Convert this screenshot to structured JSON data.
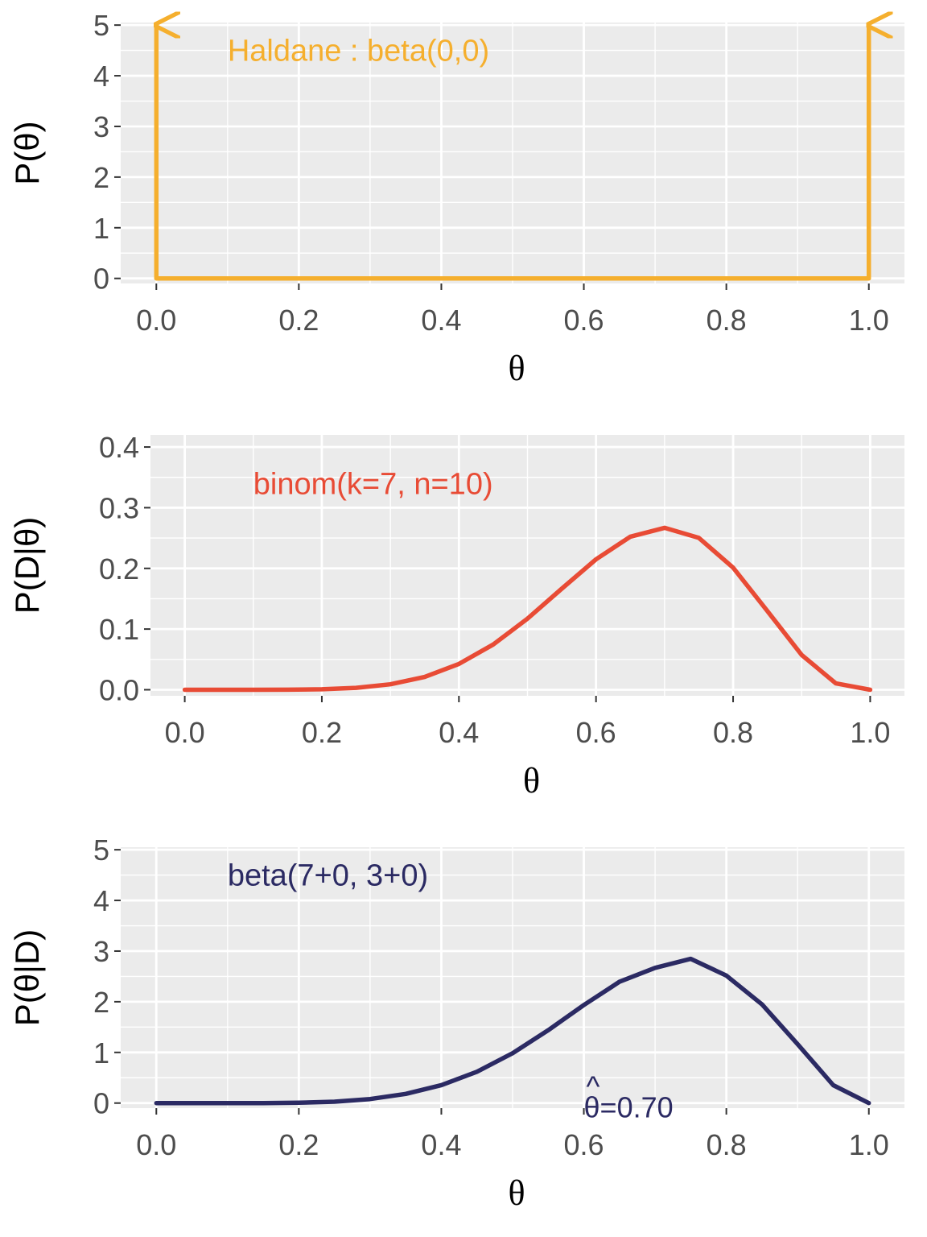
{
  "chart_data": [
    {
      "type": "line",
      "ylabel": "P(θ)",
      "xlabel": "θ",
      "xlim": [
        -0.05,
        1.05
      ],
      "ylim": [
        -0.1,
        5.05
      ],
      "x_ticks": [
        "0.0",
        "0.2",
        "0.4",
        "0.6",
        "0.8",
        "1.0"
      ],
      "y_ticks": [
        "0",
        "1",
        "2",
        "3",
        "4",
        "5"
      ],
      "grid": true,
      "color": "#F5AF2E",
      "annotation": "Haldane : beta(0,0)",
      "series": [
        {
          "x": [
            0.0,
            0.0,
            1.0,
            1.0
          ],
          "y": [
            5.0,
            0.0,
            0.0,
            5.0
          ]
        }
      ],
      "arrows_at": [
        0.0,
        1.0
      ]
    },
    {
      "type": "line",
      "ylabel": "P(D|θ)",
      "xlabel": "θ",
      "xlim": [
        -0.05,
        1.05
      ],
      "ylim": [
        -0.01,
        0.42
      ],
      "x_ticks": [
        "0.0",
        "0.2",
        "0.4",
        "0.6",
        "0.8",
        "1.0"
      ],
      "y_ticks": [
        "0.0",
        "0.1",
        "0.2",
        "0.3",
        "0.4"
      ],
      "grid": true,
      "color": "#E84B35",
      "annotation": "binom(k=7, n=10)",
      "series": [
        {
          "x": [
            0.0,
            0.05,
            0.1,
            0.15,
            0.2,
            0.25,
            0.3,
            0.35,
            0.4,
            0.45,
            0.5,
            0.55,
            0.6,
            0.65,
            0.7,
            0.75,
            0.8,
            0.85,
            0.9,
            0.95,
            1.0
          ],
          "y": [
            0.0,
            0.0,
            0.0,
            0.0001,
            0.0008,
            0.0031,
            0.009,
            0.021,
            0.0425,
            0.0746,
            0.1172,
            0.1665,
            0.215,
            0.2522,
            0.2668,
            0.2503,
            0.2013,
            0.1298,
            0.0574,
            0.0105,
            0.0
          ]
        }
      ]
    },
    {
      "type": "line",
      "ylabel": "P(θ|D)",
      "xlabel": "θ",
      "xlim": [
        -0.05,
        1.05
      ],
      "ylim": [
        -0.1,
        5.05
      ],
      "x_ticks": [
        "0.0",
        "0.2",
        "0.4",
        "0.6",
        "0.8",
        "1.0"
      ],
      "y_ticks": [
        "0",
        "1",
        "2",
        "3",
        "4",
        "5"
      ],
      "grid": true,
      "color": "#2B2A63",
      "annotation": "beta(7+0, 3+0)",
      "estimate_label": "θ=0.70",
      "estimate_hat": "^",
      "series": [
        {
          "x": [
            0.0,
            0.05,
            0.1,
            0.15,
            0.2,
            0.25,
            0.3,
            0.35,
            0.4,
            0.45,
            0.5,
            0.55,
            0.6,
            0.65,
            0.7,
            0.75,
            0.8,
            0.85,
            0.9,
            0.95,
            1.0
          ],
          "y": [
            0.0,
            0.0,
            0.0,
            0.0008,
            0.0066,
            0.0277,
            0.0794,
            0.1809,
            0.3539,
            0.6188,
            0.9844,
            1.4379,
            1.9349,
            2.3942,
            2.6683,
            2.8477,
            2.5166,
            1.9488,
            1.1624,
            0.3528,
            0.0
          ]
        }
      ]
    }
  ]
}
